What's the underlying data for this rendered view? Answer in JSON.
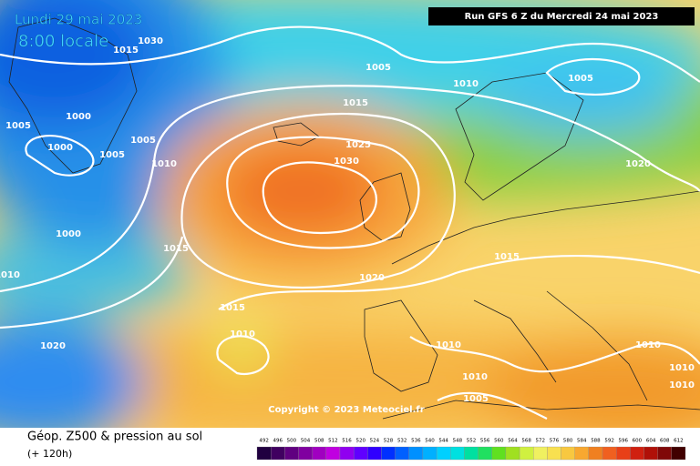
{
  "header": {
    "date": "Lundi 29 mai 2023",
    "time": "8:00 locale",
    "run": "Run GFS 6 Z du Mercredi 24 mai 2023"
  },
  "copyright": "Copyright © 2023 Meteociel.fr",
  "footer": {
    "title": "Géop. Z500 & pression au sol",
    "lead": "(+ 120h)"
  },
  "isobar_labels": [
    "1030",
    "1015",
    "1005",
    "1010",
    "1005",
    "1015",
    "1000",
    "1005",
    "1005",
    "1000",
    "1005",
    "1010",
    "1025",
    "1030",
    "1020",
    "1000",
    "1015",
    "1015",
    "1010",
    "1020",
    "1015",
    "1010",
    "1020",
    "1010",
    "1010",
    "1010",
    "1010",
    "1010",
    "1005"
  ],
  "scale": [
    "492",
    "496",
    "500",
    "504",
    "508",
    "512",
    "516",
    "520",
    "524",
    "528",
    "532",
    "536",
    "540",
    "544",
    "548",
    "552",
    "556",
    "560",
    "564",
    "568",
    "572",
    "576",
    "580",
    "584",
    "588",
    "592",
    "596",
    "600",
    "604",
    "608",
    "612"
  ]
}
